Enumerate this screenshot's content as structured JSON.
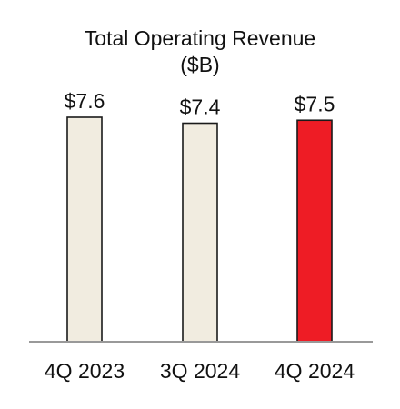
{
  "chart_data": {
    "type": "bar",
    "title": "Total Operating Revenue",
    "subtitle": "($B)",
    "categories": [
      "4Q 2023",
      "3Q 2024",
      "4Q 2024"
    ],
    "values": [
      7.6,
      7.4,
      7.5
    ],
    "data_labels": [
      "$7.6",
      "$7.4",
      "$7.5"
    ],
    "xlabel": "",
    "ylabel": "",
    "ylim": [
      0,
      7.6
    ],
    "grid": false,
    "legend": "none",
    "colors": {
      "default_bar": "#f1ece0",
      "highlight_bar": "#ee1c25",
      "bar_outline": "#1a1a1a",
      "axis": "#999999"
    },
    "highlight_index": 2
  }
}
